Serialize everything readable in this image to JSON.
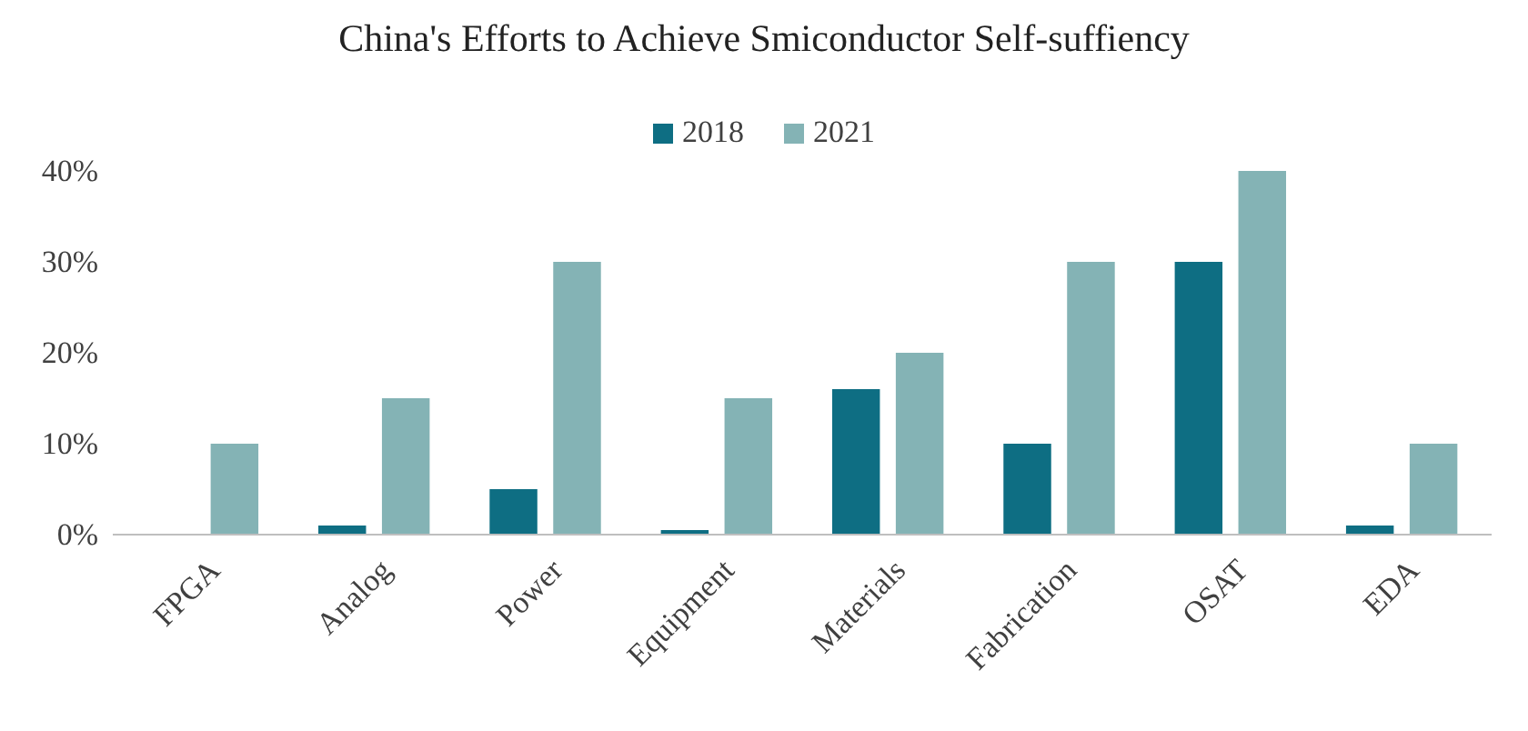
{
  "chart_data": {
    "type": "bar",
    "title": "China's Efforts to Achieve Smiconductor Self-suffiency",
    "categories": [
      "FPGA",
      "Analog",
      "Power",
      "Equipment",
      "Materials",
      "Fabrication",
      "OSAT",
      "EDA"
    ],
    "series": [
      {
        "name": "2018",
        "color": "#0e6e83",
        "values": [
          0,
          1,
          5,
          0.5,
          16,
          10,
          30,
          1
        ]
      },
      {
        "name": "2021",
        "color": "#84b3b5",
        "values": [
          10,
          15,
          30,
          15,
          20,
          30,
          40,
          10
        ]
      }
    ],
    "ylim": [
      0,
      40
    ],
    "yticks": [
      {
        "value": 0,
        "label": "0%"
      },
      {
        "value": 10,
        "label": "10%"
      },
      {
        "value": 20,
        "label": "20%"
      },
      {
        "value": 30,
        "label": "30%"
      },
      {
        "value": 40,
        "label": "40%"
      }
    ],
    "grid": false,
    "legend": "top"
  }
}
